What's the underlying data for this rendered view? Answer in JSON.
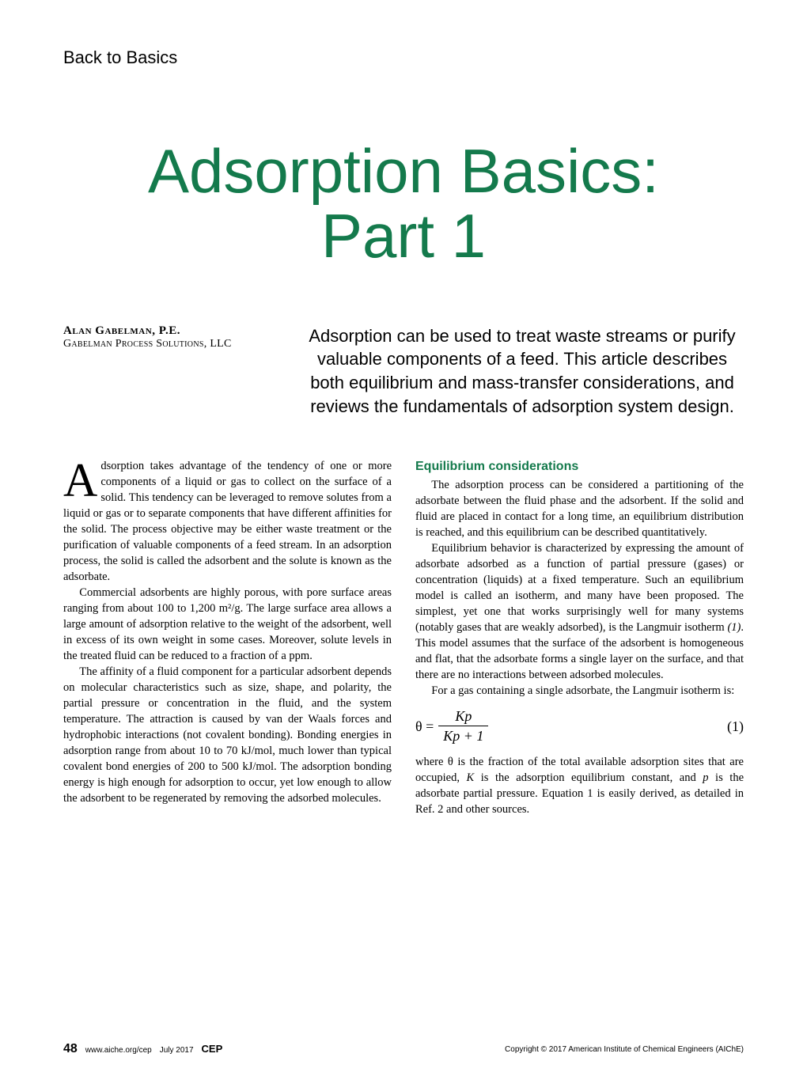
{
  "section_label": "Back to Basics",
  "title_line1": "Adsorption Basics:",
  "title_line2": "Part 1",
  "author_name": "Alan Gabelman, P.E.",
  "author_affil": "Gabelman Process Solutions, LLC",
  "abstract": "Adsorption can be used to treat waste streams or purify valuable components of a feed. This article describes both equilibrium and mass-transfer considerations, and reviews the fundamentals of adsorption system design.",
  "dropcap_letter": "A",
  "left_col": {
    "p1_after_drop": "dsorption takes advantage of the tendency of one or more components of a liquid or gas to collect on the surface of a solid. This tendency can be leveraged to remove solutes from a liquid or gas or to separate components that have different affinities for the solid. The process objective may be either waste treatment or the purification of valuable components of a feed stream. In an adsorption process, the solid is called the adsorbent and the solute is known as the adsorbate.",
    "p2": "Commercial adsorbents are highly porous, with pore surface areas ranging from about 100 to 1,200 m²/g. The large surface area allows a large amount of adsorption relative to the weight of the adsorbent, well in excess of its own weight in some cases. Moreover, solute levels in the treated fluid can be reduced to a fraction of a ppm.",
    "p3": "The affinity of a fluid component for a particular adsorbent depends on molecular characteristics such as size, shape, and polarity, the partial pressure or concentration in the fluid, and the system temperature. The attraction is caused by van der Waals forces and hydrophobic interactions (not covalent bonding). Bonding energies in adsorption range from about 10 to 70 kJ/mol, much lower than typical covalent bond energies of 200 to 500 kJ/mol. The adsorption bonding energy is high enough for adsorption to occur, yet low enough to allow the adsorbent to be regenerated by removing the adsorbed molecules."
  },
  "right_col": {
    "heading": "Equilibrium considerations",
    "p1": "The adsorption process can be considered a partitioning of the adsorbate between the fluid phase and the adsorbent. If the solid and fluid are placed in contact for a long time, an equilibrium distribution is reached, and this equilibrium can be described quantitatively.",
    "p2_a": "Equilibrium behavior is characterized by expressing the amount of adsorbate adsorbed as a function of partial pressure (gases) or concentration (liquids) at a fixed temperature. Such an equilibrium model is called an isotherm, and many have been proposed. The simplest, yet one that works surprisingly well for many systems (notably gases that are weakly adsorbed), is the Langmuir isotherm ",
    "p2_ref": "(1)",
    "p2_b": ". This model assumes that the surface of the adsorbent is homogeneous and flat, that the adsorbate forms a single layer on the surface, and that there are no interactions between adsorbed molecules.",
    "p3": "For a gas containing a single adsorbate, the Langmuir isotherm is:",
    "eq_theta": "θ =",
    "eq_num": "Kp",
    "eq_den": "Kp + 1",
    "eq_number": "(1)",
    "p4_a": "where θ is the fraction of the total available adsorption sites that are occupied, ",
    "p4_K": "K",
    "p4_b": " is the adsorption equilibrium constant, and ",
    "p4_p": "p",
    "p4_c": " is the adsorbate partial pressure. Equation 1 is easily derived, as detailed in Ref. 2 and other sources."
  },
  "footer": {
    "page_num": "48",
    "url": "www.aiche.org/cep",
    "date": "July 2017",
    "cep": "CEP",
    "copyright": "Copyright © 2017 American Institute of Chemical Engineers (AIChE)"
  },
  "colors": {
    "accent_green": "#147a4c",
    "text": "#000000",
    "background": "#ffffff"
  }
}
